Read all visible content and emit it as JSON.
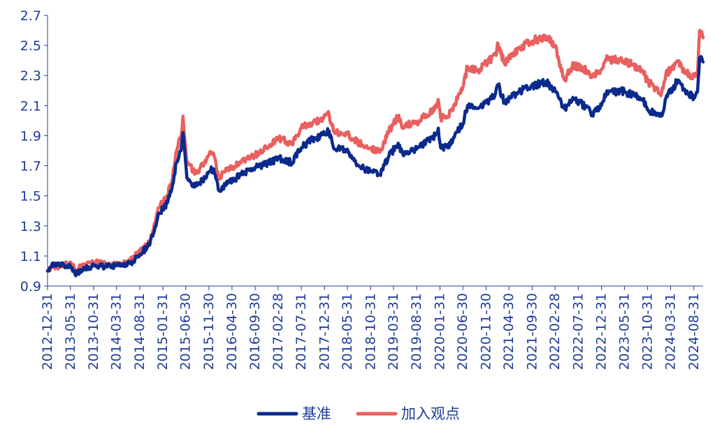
{
  "chart_data": {
    "type": "line",
    "title": "",
    "xlabel": "",
    "ylabel": "",
    "ylim": [
      0.9,
      2.7
    ],
    "yticks": [
      "0.9",
      "1.1",
      "1.3",
      "1.5",
      "1.7",
      "1.9",
      "2.1",
      "2.3",
      "2.5",
      "2.7"
    ],
    "xticks": [
      "2012-12-31",
      "2013-05-31",
      "2013-10-31",
      "2014-03-31",
      "2014-08-31",
      "2015-01-31",
      "2015-06-30",
      "2015-11-30",
      "2016-04-30",
      "2016-09-30",
      "2017-02-28",
      "2017-07-31",
      "2017-12-31",
      "2018-05-31",
      "2018-10-31",
      "2019-03-31",
      "2019-08-31",
      "2020-01-31",
      "2020-06-30",
      "2020-11-30",
      "2021-04-30",
      "2021-09-30",
      "2022-02-28",
      "2022-07-31",
      "2022-12-31",
      "2023-05-31",
      "2023-10-31",
      "2024-03-31",
      "2024-08-31"
    ],
    "x_end": "2024-10-31",
    "grid": false,
    "legend": "bottom",
    "series": [
      {
        "name": "基准",
        "color": "#0a2a8c",
        "points": [
          [
            "2012-12-31",
            1.0
          ],
          [
            "2013-01-31",
            1.05
          ],
          [
            "2013-03-31",
            1.04
          ],
          [
            "2013-05-31",
            1.03
          ],
          [
            "2013-06-30",
            0.98
          ],
          [
            "2013-08-31",
            1.01
          ],
          [
            "2013-10-31",
            1.04
          ],
          [
            "2013-12-31",
            1.03
          ],
          [
            "2014-02-28",
            1.03
          ],
          [
            "2014-04-30",
            1.04
          ],
          [
            "2014-06-30",
            1.05
          ],
          [
            "2014-08-31",
            1.11
          ],
          [
            "2014-10-31",
            1.17
          ],
          [
            "2014-11-30",
            1.25
          ],
          [
            "2014-12-31",
            1.38
          ],
          [
            "2015-02-28",
            1.45
          ],
          [
            "2015-03-31",
            1.55
          ],
          [
            "2015-04-30",
            1.72
          ],
          [
            "2015-05-31",
            1.8
          ],
          [
            "2015-06-12",
            1.92
          ],
          [
            "2015-07-08",
            1.62
          ],
          [
            "2015-08-31",
            1.56
          ],
          [
            "2015-09-30",
            1.58
          ],
          [
            "2015-11-30",
            1.66
          ],
          [
            "2015-12-31",
            1.68
          ],
          [
            "2016-01-31",
            1.54
          ],
          [
            "2016-03-31",
            1.58
          ],
          [
            "2016-06-30",
            1.64
          ],
          [
            "2016-09-30",
            1.69
          ],
          [
            "2016-12-31",
            1.72
          ],
          [
            "2017-02-28",
            1.75
          ],
          [
            "2017-05-31",
            1.72
          ],
          [
            "2017-07-31",
            1.82
          ],
          [
            "2017-09-30",
            1.87
          ],
          [
            "2017-11-30",
            1.89
          ],
          [
            "2018-01-31",
            1.93
          ],
          [
            "2018-02-28",
            1.82
          ],
          [
            "2018-05-31",
            1.81
          ],
          [
            "2018-07-31",
            1.7
          ],
          [
            "2018-10-31",
            1.66
          ],
          [
            "2018-12-31",
            1.64
          ],
          [
            "2019-02-28",
            1.76
          ],
          [
            "2019-04-30",
            1.85
          ],
          [
            "2019-05-31",
            1.78
          ],
          [
            "2019-08-31",
            1.81
          ],
          [
            "2019-10-31",
            1.86
          ],
          [
            "2019-12-31",
            1.9
          ],
          [
            "2020-01-20",
            1.95
          ],
          [
            "2020-02-05",
            1.82
          ],
          [
            "2020-03-20",
            1.82
          ],
          [
            "2020-04-30",
            1.89
          ],
          [
            "2020-06-30",
            1.98
          ],
          [
            "2020-07-31",
            2.1
          ],
          [
            "2020-09-30",
            2.08
          ],
          [
            "2020-11-30",
            2.12
          ],
          [
            "2021-01-31",
            2.18
          ],
          [
            "2021-02-18",
            2.24
          ],
          [
            "2021-03-31",
            2.12
          ],
          [
            "2021-06-30",
            2.19
          ],
          [
            "2021-09-30",
            2.23
          ],
          [
            "2021-12-31",
            2.26
          ],
          [
            "2022-02-28",
            2.2
          ],
          [
            "2022-04-30",
            2.08
          ],
          [
            "2022-06-30",
            2.14
          ],
          [
            "2022-09-30",
            2.09
          ],
          [
            "2022-10-31",
            2.04
          ],
          [
            "2022-12-31",
            2.1
          ],
          [
            "2023-01-31",
            2.18
          ],
          [
            "2023-04-30",
            2.2
          ],
          [
            "2023-07-31",
            2.17
          ],
          [
            "2023-09-30",
            2.14
          ],
          [
            "2023-10-31",
            2.07
          ],
          [
            "2024-01-31",
            2.03
          ],
          [
            "2024-02-29",
            2.15
          ],
          [
            "2024-05-20",
            2.27
          ],
          [
            "2024-06-30",
            2.21
          ],
          [
            "2024-08-31",
            2.15
          ],
          [
            "2024-09-24",
            2.19
          ],
          [
            "2024-10-08",
            2.42
          ],
          [
            "2024-10-31",
            2.39
          ]
        ]
      },
      {
        "name": "加入观点",
        "color": "#e8605f",
        "points": [
          [
            "2012-12-31",
            1.0
          ],
          [
            "2013-01-31",
            1.03
          ],
          [
            "2013-03-31",
            1.03
          ],
          [
            "2013-05-31",
            1.06
          ],
          [
            "2013-06-30",
            1.01
          ],
          [
            "2013-08-31",
            1.04
          ],
          [
            "2013-10-31",
            1.06
          ],
          [
            "2013-12-31",
            1.05
          ],
          [
            "2014-02-28",
            1.04
          ],
          [
            "2014-04-30",
            1.05
          ],
          [
            "2014-06-30",
            1.07
          ],
          [
            "2014-08-31",
            1.13
          ],
          [
            "2014-10-31",
            1.19
          ],
          [
            "2014-11-30",
            1.28
          ],
          [
            "2014-12-31",
            1.42
          ],
          [
            "2015-02-28",
            1.5
          ],
          [
            "2015-03-31",
            1.6
          ],
          [
            "2015-04-30",
            1.8
          ],
          [
            "2015-05-31",
            1.9
          ],
          [
            "2015-06-12",
            2.03
          ],
          [
            "2015-07-08",
            1.72
          ],
          [
            "2015-08-31",
            1.65
          ],
          [
            "2015-09-30",
            1.68
          ],
          [
            "2015-11-30",
            1.77
          ],
          [
            "2015-12-31",
            1.78
          ],
          [
            "2016-01-31",
            1.62
          ],
          [
            "2016-03-31",
            1.67
          ],
          [
            "2016-06-30",
            1.72
          ],
          [
            "2016-09-30",
            1.77
          ],
          [
            "2016-12-31",
            1.83
          ],
          [
            "2017-02-28",
            1.88
          ],
          [
            "2017-05-31",
            1.85
          ],
          [
            "2017-07-31",
            1.95
          ],
          [
            "2017-09-30",
            1.98
          ],
          [
            "2017-11-30",
            2.01
          ],
          [
            "2018-01-31",
            2.04
          ],
          [
            "2018-02-28",
            1.93
          ],
          [
            "2018-05-31",
            1.91
          ],
          [
            "2018-07-31",
            1.86
          ],
          [
            "2018-10-31",
            1.82
          ],
          [
            "2018-12-31",
            1.79
          ],
          [
            "2019-02-28",
            1.93
          ],
          [
            "2019-04-30",
            2.03
          ],
          [
            "2019-05-31",
            1.96
          ],
          [
            "2019-08-31",
            1.99
          ],
          [
            "2019-10-31",
            2.04
          ],
          [
            "2019-12-31",
            2.08
          ],
          [
            "2020-01-20",
            2.14
          ],
          [
            "2020-02-05",
            2.02
          ],
          [
            "2020-03-20",
            2.02
          ],
          [
            "2020-04-30",
            2.1
          ],
          [
            "2020-06-30",
            2.22
          ],
          [
            "2020-07-31",
            2.36
          ],
          [
            "2020-09-30",
            2.33
          ],
          [
            "2020-11-30",
            2.38
          ],
          [
            "2021-01-31",
            2.44
          ],
          [
            "2021-02-18",
            2.51
          ],
          [
            "2021-03-31",
            2.38
          ],
          [
            "2021-06-30",
            2.48
          ],
          [
            "2021-09-30",
            2.53
          ],
          [
            "2021-12-31",
            2.56
          ],
          [
            "2022-02-28",
            2.5
          ],
          [
            "2022-04-30",
            2.27
          ],
          [
            "2022-06-30",
            2.37
          ],
          [
            "2022-09-30",
            2.33
          ],
          [
            "2022-10-31",
            2.29
          ],
          [
            "2022-12-31",
            2.34
          ],
          [
            "2023-01-31",
            2.41
          ],
          [
            "2023-04-30",
            2.4
          ],
          [
            "2023-07-31",
            2.37
          ],
          [
            "2023-09-30",
            2.33
          ],
          [
            "2023-10-31",
            2.26
          ],
          [
            "2024-01-31",
            2.18
          ],
          [
            "2024-02-29",
            2.31
          ],
          [
            "2024-05-20",
            2.39
          ],
          [
            "2024-06-30",
            2.32
          ],
          [
            "2024-08-31",
            2.29
          ],
          [
            "2024-09-24",
            2.32
          ],
          [
            "2024-10-08",
            2.6
          ],
          [
            "2024-10-31",
            2.55
          ]
        ]
      }
    ]
  }
}
